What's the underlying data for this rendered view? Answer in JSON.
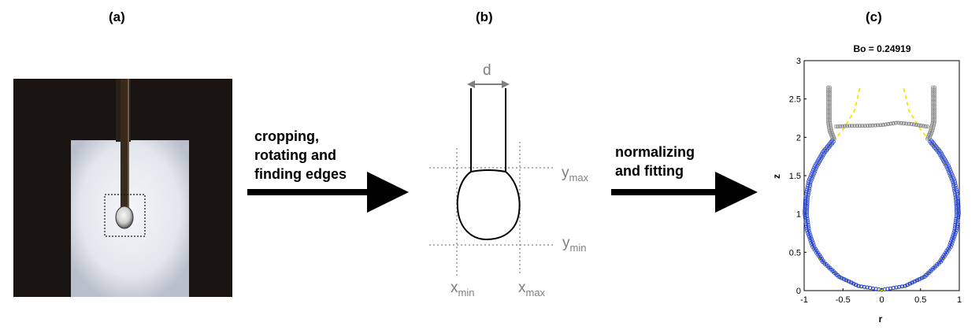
{
  "panels": {
    "a": "(a)",
    "b": "(b)",
    "c": "(c)"
  },
  "steps": {
    "crop": [
      "cropping,",
      "rotating and",
      "finding edges"
    ],
    "fit": [
      "normalizing",
      "and fitting"
    ]
  },
  "edge_labels": {
    "d": "d",
    "ymax_base": "y",
    "ymax_sub": "max",
    "ymin_base": "y",
    "ymin_sub": "min",
    "xmin_base": "x",
    "xmin_sub": "min",
    "xmax_base": "x",
    "xmax_sub": "max"
  },
  "colors": {
    "photo_bg": "#1a1410",
    "backlight": "#e6e8ee",
    "grey": "#7f7f7f",
    "points_needle": "#8c8c8c",
    "points_drop": "#1f3fd6",
    "fit": "#f2e600"
  },
  "chart_data": {
    "type": "scatter",
    "title": "Bo = 0.24919",
    "xlabel": "r",
    "ylabel": "z",
    "xlim": [
      -1,
      1
    ],
    "ylim": [
      0,
      3
    ],
    "xticks": [
      "-1",
      "-0.5",
      "0",
      "0.5",
      "1"
    ],
    "yticks": [
      "0",
      "0.5",
      "1",
      "1.5",
      "2",
      "2.5",
      "3"
    ],
    "grid": false,
    "series": [
      {
        "marker": "grey circles",
        "points": [
          [
            -0.68,
            2.65
          ],
          [
            -0.68,
            2.5
          ],
          [
            -0.68,
            2.35
          ],
          [
            -0.68,
            2.2
          ],
          [
            -0.66,
            2.08
          ],
          [
            -0.62,
            1.98
          ],
          [
            -0.58,
            2.14
          ],
          [
            -0.4,
            2.15
          ],
          [
            -0.2,
            2.15
          ],
          [
            0.0,
            2.16
          ],
          [
            0.2,
            2.19
          ],
          [
            0.4,
            2.17
          ],
          [
            0.58,
            2.14
          ],
          [
            0.6,
            1.98
          ],
          [
            0.64,
            2.08
          ],
          [
            0.67,
            2.2
          ],
          [
            0.67,
            2.35
          ],
          [
            0.67,
            2.5
          ],
          [
            0.67,
            2.65
          ]
        ]
      },
      {
        "marker": "blue circles",
        "points": [
          [
            -0.63,
            1.95
          ],
          [
            -0.75,
            1.8
          ],
          [
            -0.85,
            1.62
          ],
          [
            -0.93,
            1.42
          ],
          [
            -0.97,
            1.2
          ],
          [
            -0.98,
            1.0
          ],
          [
            -0.95,
            0.78
          ],
          [
            -0.88,
            0.57
          ],
          [
            -0.75,
            0.37
          ],
          [
            -0.55,
            0.18
          ],
          [
            -0.3,
            0.06
          ],
          [
            0.0,
            0.01
          ],
          [
            0.3,
            0.06
          ],
          [
            0.55,
            0.18
          ],
          [
            0.75,
            0.37
          ],
          [
            0.88,
            0.57
          ],
          [
            0.95,
            0.78
          ],
          [
            0.98,
            1.0
          ],
          [
            0.97,
            1.2
          ],
          [
            0.93,
            1.42
          ],
          [
            0.85,
            1.62
          ],
          [
            0.75,
            1.8
          ],
          [
            0.63,
            1.95
          ]
        ]
      },
      {
        "marker": "yellow dashed line",
        "points": [
          [
            0.0,
            0.0
          ],
          [
            0.3,
            0.05
          ],
          [
            0.58,
            0.2
          ],
          [
            0.8,
            0.42
          ],
          [
            0.93,
            0.68
          ],
          [
            0.98,
            0.98
          ],
          [
            0.95,
            1.28
          ],
          [
            0.86,
            1.58
          ],
          [
            0.7,
            1.86
          ],
          [
            0.5,
            2.1
          ],
          [
            0.35,
            2.35
          ],
          [
            0.28,
            2.65
          ]
        ]
      }
    ]
  }
}
